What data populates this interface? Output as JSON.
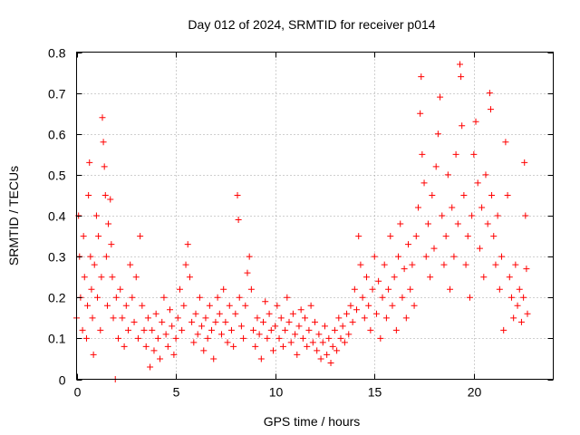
{
  "chart_data": {
    "type": "scatter",
    "title": "Day 012 of 2024, SRMTID for receiver p014",
    "xlabel": "GPS time / hours",
    "ylabel": "SRMTID / TECUs",
    "xlim": [
      0,
      24
    ],
    "ylim": [
      0,
      0.8
    ],
    "xticks": [
      0,
      5,
      10,
      15,
      20
    ],
    "yticks": [
      0,
      0.1,
      0.2,
      0.3,
      0.4,
      0.5,
      0.6,
      0.7,
      0.8
    ],
    "xtick_labels": [
      "0",
      "5",
      "10",
      "15",
      "20"
    ],
    "ytick_labels": [
      "0",
      "0.1",
      "0.2",
      "0.3",
      "0.4",
      "0.5",
      "0.6",
      "0.7",
      "0.8"
    ],
    "grid": true,
    "marker": "+",
    "color": "#ff0000",
    "series": [
      {
        "name": "SRMTID",
        "points": [
          [
            0.0,
            0.15
          ],
          [
            0.1,
            0.4
          ],
          [
            0.15,
            0.3
          ],
          [
            0.2,
            0.2
          ],
          [
            0.3,
            0.12
          ],
          [
            0.35,
            0.35
          ],
          [
            0.4,
            0.25
          ],
          [
            0.5,
            0.1
          ],
          [
            0.55,
            0.18
          ],
          [
            0.6,
            0.45
          ],
          [
            0.65,
            0.53
          ],
          [
            0.7,
            0.3
          ],
          [
            0.75,
            0.22
          ],
          [
            0.8,
            0.15
          ],
          [
            0.85,
            0.06
          ],
          [
            0.9,
            0.28
          ],
          [
            1.0,
            0.4
          ],
          [
            1.05,
            0.2
          ],
          [
            1.1,
            0.35
          ],
          [
            1.2,
            0.12
          ],
          [
            1.25,
            0.25
          ],
          [
            1.3,
            0.64
          ],
          [
            1.35,
            0.58
          ],
          [
            1.4,
            0.52
          ],
          [
            1.45,
            0.45
          ],
          [
            1.5,
            0.3
          ],
          [
            1.55,
            0.18
          ],
          [
            1.6,
            0.38
          ],
          [
            1.7,
            0.44
          ],
          [
            1.75,
            0.33
          ],
          [
            1.8,
            0.25
          ],
          [
            1.85,
            0.15
          ],
          [
            1.95,
            0.0
          ],
          [
            2.0,
            0.2
          ],
          [
            2.1,
            0.1
          ],
          [
            2.2,
            0.22
          ],
          [
            2.3,
            0.15
          ],
          [
            2.4,
            0.08
          ],
          [
            2.5,
            0.18
          ],
          [
            2.6,
            0.12
          ],
          [
            2.7,
            0.28
          ],
          [
            2.8,
            0.2
          ],
          [
            2.9,
            0.14
          ],
          [
            3.0,
            0.25
          ],
          [
            3.1,
            0.1
          ],
          [
            3.2,
            0.35
          ],
          [
            3.3,
            0.18
          ],
          [
            3.4,
            0.12
          ],
          [
            3.5,
            0.08
          ],
          [
            3.6,
            0.15
          ],
          [
            3.7,
            0.03
          ],
          [
            3.8,
            0.12
          ],
          [
            3.9,
            0.07
          ],
          [
            4.0,
            0.16
          ],
          [
            4.1,
            0.1
          ],
          [
            4.2,
            0.05
          ],
          [
            4.3,
            0.14
          ],
          [
            4.4,
            0.2
          ],
          [
            4.5,
            0.11
          ],
          [
            4.6,
            0.08
          ],
          [
            4.7,
            0.17
          ],
          [
            4.8,
            0.13
          ],
          [
            4.9,
            0.06
          ],
          [
            5.0,
            0.1
          ],
          [
            5.1,
            0.15
          ],
          [
            5.2,
            0.22
          ],
          [
            5.3,
            0.12
          ],
          [
            5.4,
            0.18
          ],
          [
            5.5,
            0.28
          ],
          [
            5.6,
            0.33
          ],
          [
            5.7,
            0.25
          ],
          [
            5.8,
            0.14
          ],
          [
            5.9,
            0.09
          ],
          [
            6.0,
            0.16
          ],
          [
            6.1,
            0.11
          ],
          [
            6.2,
            0.2
          ],
          [
            6.3,
            0.13
          ],
          [
            6.4,
            0.07
          ],
          [
            6.5,
            0.15
          ],
          [
            6.6,
            0.1
          ],
          [
            6.7,
            0.18
          ],
          [
            6.8,
            0.12
          ],
          [
            6.9,
            0.05
          ],
          [
            7.0,
            0.14
          ],
          [
            7.1,
            0.2
          ],
          [
            7.2,
            0.16
          ],
          [
            7.3,
            0.11
          ],
          [
            7.4,
            0.22
          ],
          [
            7.5,
            0.14
          ],
          [
            7.6,
            0.09
          ],
          [
            7.7,
            0.18
          ],
          [
            7.8,
            0.12
          ],
          [
            7.9,
            0.08
          ],
          [
            8.0,
            0.16
          ],
          [
            8.1,
            0.45
          ],
          [
            8.15,
            0.39
          ],
          [
            8.2,
            0.2
          ],
          [
            8.3,
            0.13
          ],
          [
            8.4,
            0.1
          ],
          [
            8.5,
            0.18
          ],
          [
            8.6,
            0.26
          ],
          [
            8.7,
            0.3
          ],
          [
            8.8,
            0.22
          ],
          [
            8.9,
            0.12
          ],
          [
            9.0,
            0.08
          ],
          [
            9.1,
            0.15
          ],
          [
            9.2,
            0.11
          ],
          [
            9.3,
            0.05
          ],
          [
            9.4,
            0.14
          ],
          [
            9.5,
            0.19
          ],
          [
            9.6,
            0.1
          ],
          [
            9.7,
            0.16
          ],
          [
            9.8,
            0.12
          ],
          [
            9.9,
            0.07
          ],
          [
            10.0,
            0.13
          ],
          [
            10.1,
            0.18
          ],
          [
            10.2,
            0.1
          ],
          [
            10.3,
            0.15
          ],
          [
            10.4,
            0.08
          ],
          [
            10.5,
            0.12
          ],
          [
            10.6,
            0.2
          ],
          [
            10.7,
            0.14
          ],
          [
            10.8,
            0.09
          ],
          [
            10.9,
            0.16
          ],
          [
            11.0,
            0.11
          ],
          [
            11.1,
            0.06
          ],
          [
            11.2,
            0.13
          ],
          [
            11.3,
            0.17
          ],
          [
            11.4,
            0.1
          ],
          [
            11.5,
            0.15
          ],
          [
            11.6,
            0.08
          ],
          [
            11.7,
            0.12
          ],
          [
            11.8,
            0.18
          ],
          [
            11.9,
            0.09
          ],
          [
            12.0,
            0.14
          ],
          [
            12.1,
            0.07
          ],
          [
            12.2,
            0.11
          ],
          [
            12.3,
            0.05
          ],
          [
            12.4,
            0.09
          ],
          [
            12.5,
            0.13
          ],
          [
            12.6,
            0.06
          ],
          [
            12.7,
            0.1
          ],
          [
            12.8,
            0.04
          ],
          [
            12.9,
            0.08
          ],
          [
            13.0,
            0.12
          ],
          [
            13.1,
            0.07
          ],
          [
            13.2,
            0.15
          ],
          [
            13.3,
            0.1
          ],
          [
            13.4,
            0.13
          ],
          [
            13.5,
            0.09
          ],
          [
            13.6,
            0.16
          ],
          [
            13.7,
            0.11
          ],
          [
            13.8,
            0.18
          ],
          [
            13.9,
            0.14
          ],
          [
            14.0,
            0.22
          ],
          [
            14.1,
            0.17
          ],
          [
            14.2,
            0.35
          ],
          [
            14.3,
            0.28
          ],
          [
            14.4,
            0.2
          ],
          [
            14.5,
            0.15
          ],
          [
            14.6,
            0.25
          ],
          [
            14.7,
            0.18
          ],
          [
            14.8,
            0.12
          ],
          [
            14.9,
            0.22
          ],
          [
            15.0,
            0.3
          ],
          [
            15.1,
            0.16
          ],
          [
            15.2,
            0.24
          ],
          [
            15.3,
            0.1
          ],
          [
            15.4,
            0.2
          ],
          [
            15.5,
            0.28
          ],
          [
            15.6,
            0.15
          ],
          [
            15.7,
            0.22
          ],
          [
            15.8,
            0.35
          ],
          [
            15.9,
            0.18
          ],
          [
            16.0,
            0.25
          ],
          [
            16.1,
            0.12
          ],
          [
            16.2,
            0.3
          ],
          [
            16.3,
            0.38
          ],
          [
            16.4,
            0.2
          ],
          [
            16.5,
            0.27
          ],
          [
            16.6,
            0.15
          ],
          [
            16.7,
            0.33
          ],
          [
            16.8,
            0.22
          ],
          [
            16.9,
            0.28
          ],
          [
            17.0,
            0.18
          ],
          [
            17.1,
            0.35
          ],
          [
            17.2,
            0.42
          ],
          [
            17.3,
            0.65
          ],
          [
            17.35,
            0.74
          ],
          [
            17.4,
            0.55
          ],
          [
            17.5,
            0.48
          ],
          [
            17.6,
            0.3
          ],
          [
            17.7,
            0.38
          ],
          [
            17.8,
            0.25
          ],
          [
            17.9,
            0.45
          ],
          [
            18.0,
            0.32
          ],
          [
            18.1,
            0.52
          ],
          [
            18.2,
            0.6
          ],
          [
            18.3,
            0.69
          ],
          [
            18.4,
            0.4
          ],
          [
            18.5,
            0.28
          ],
          [
            18.6,
            0.35
          ],
          [
            18.7,
            0.5
          ],
          [
            18.8,
            0.22
          ],
          [
            18.9,
            0.42
          ],
          [
            19.0,
            0.3
          ],
          [
            19.1,
            0.55
          ],
          [
            19.2,
            0.38
          ],
          [
            19.3,
            0.77
          ],
          [
            19.35,
            0.74
          ],
          [
            19.4,
            0.62
          ],
          [
            19.5,
            0.45
          ],
          [
            19.6,
            0.28
          ],
          [
            19.7,
            0.35
          ],
          [
            19.8,
            0.2
          ],
          [
            19.9,
            0.4
          ],
          [
            20.0,
            0.55
          ],
          [
            20.1,
            0.63
          ],
          [
            20.2,
            0.48
          ],
          [
            20.3,
            0.32
          ],
          [
            20.4,
            0.42
          ],
          [
            20.5,
            0.25
          ],
          [
            20.6,
            0.5
          ],
          [
            20.7,
            0.38
          ],
          [
            20.8,
            0.7
          ],
          [
            20.85,
            0.66
          ],
          [
            20.9,
            0.45
          ],
          [
            21.0,
            0.35
          ],
          [
            21.1,
            0.28
          ],
          [
            21.2,
            0.4
          ],
          [
            21.3,
            0.22
          ],
          [
            21.4,
            0.3
          ],
          [
            21.5,
            0.12
          ],
          [
            21.6,
            0.58
          ],
          [
            21.7,
            0.45
          ],
          [
            21.8,
            0.25
          ],
          [
            21.9,
            0.2
          ],
          [
            22.0,
            0.15
          ],
          [
            22.1,
            0.28
          ],
          [
            22.2,
            0.18
          ],
          [
            22.3,
            0.22
          ],
          [
            22.4,
            0.14
          ],
          [
            22.5,
            0.2
          ],
          [
            22.55,
            0.53
          ],
          [
            22.6,
            0.4
          ],
          [
            22.65,
            0.27
          ],
          [
            22.7,
            0.16
          ]
        ]
      }
    ]
  }
}
